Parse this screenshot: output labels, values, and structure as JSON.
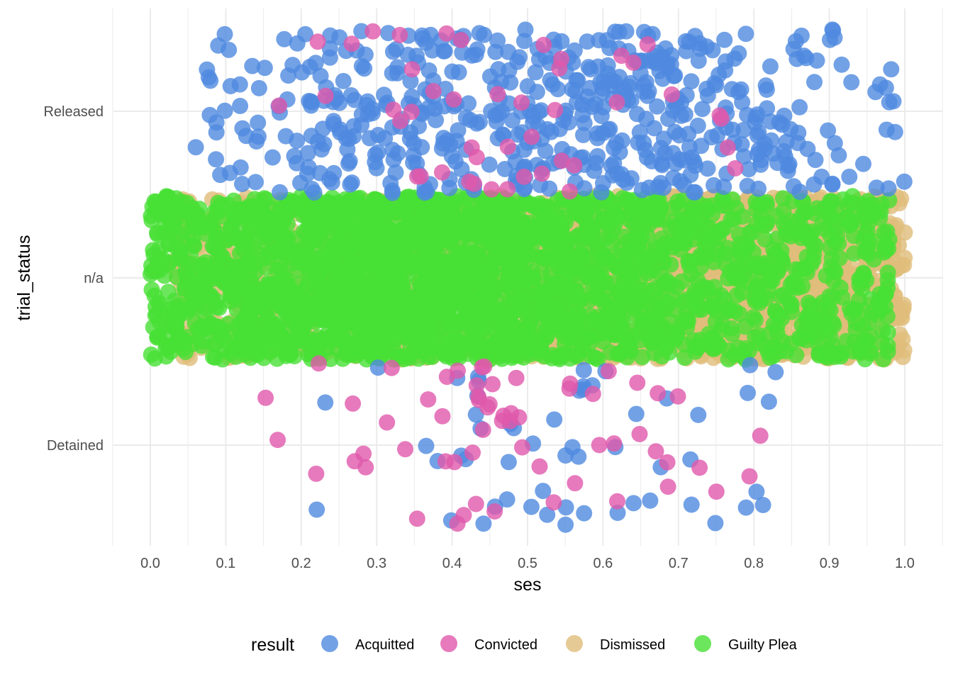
{
  "chart_data": {
    "type": "scatter",
    "subtype": "jitter",
    "title": "",
    "xlabel": "ses",
    "ylabel": "trial_status",
    "xlim": [
      -0.05,
      1.05
    ],
    "x_ticks": [
      "0.0",
      "0.1",
      "0.2",
      "0.3",
      "0.4",
      "0.5",
      "0.6",
      "0.7",
      "0.8",
      "0.9",
      "1.0"
    ],
    "y_categories": [
      "Detained",
      "n/a",
      "Released"
    ],
    "jitter_height": 0.49,
    "grid": true,
    "legend": {
      "title": "result",
      "position": "bottom",
      "entries": [
        "Acquitted",
        "Convicted",
        "Dismissed",
        "Guilty Plea"
      ]
    },
    "colors": {
      "Acquitted": "#4f8ae0",
      "Convicted": "#e059ab",
      "Dismissed": "#e0bd7a",
      "Guilty Plea": "#47e035"
    },
    "point_opacity": 0.8,
    "series": [
      {
        "name": "Dismissed",
        "category": "n/a",
        "count": 2200,
        "x_range": [
          0.03,
          1.0
        ],
        "x_peak": 0.75
      },
      {
        "name": "Guilty Plea",
        "category": "n/a",
        "count": 2600,
        "x_range": [
          0.0,
          0.98
        ],
        "x_peak": 0.35
      },
      {
        "name": "Acquitted",
        "category": "Released",
        "count": 560,
        "x_range": [
          0.06,
          1.0
        ],
        "x_peak": 0.55
      },
      {
        "name": "Convicted",
        "category": "Released",
        "count": 45,
        "x_range": [
          0.17,
          0.78
        ],
        "x_peak": 0.45
      },
      {
        "name": "Acquitted",
        "category": "Detained",
        "count": 55,
        "x_range": [
          0.22,
          0.83
        ],
        "x_peak": 0.55
      },
      {
        "name": "Convicted",
        "category": "Detained",
        "count": 60,
        "x_range": [
          0.14,
          0.83
        ],
        "x_peak": 0.45
      }
    ]
  }
}
